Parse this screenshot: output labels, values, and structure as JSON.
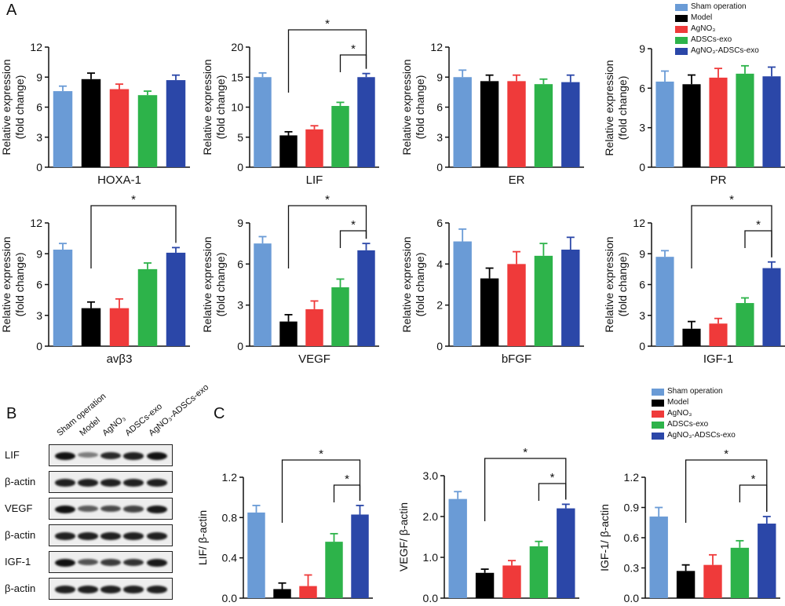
{
  "panel_letters": [
    "A",
    "B",
    "C"
  ],
  "colors": {
    "Sham operation": "#6a9bd6",
    "Model": "#000000",
    "AgNO3": "#ef3a3a",
    "ADSCs-exo": "#2db34a",
    "AgNO3-ADSCs-exo": "#2b47a8"
  },
  "legend": {
    "items": [
      "Sham operation",
      "Model",
      "AgNO₃",
      "ADSCs-exo",
      "AgNO₃-ADSCs-exo"
    ]
  },
  "blot": {
    "lanes": [
      "Sham operation",
      "Model",
      "AgNO₃",
      "ADSCs-exo",
      "AgNO₃-ADSCs-exo"
    ],
    "rows": [
      {
        "label": "LIF",
        "intensity": [
          1.0,
          0.35,
          0.85,
          0.9,
          1.0
        ]
      },
      {
        "label": "β-actin",
        "intensity": [
          0.9,
          0.9,
          0.9,
          0.9,
          0.9
        ]
      },
      {
        "label": "VEGF",
        "intensity": [
          1.0,
          0.55,
          0.65,
          0.7,
          0.95
        ]
      },
      {
        "label": "β-actin",
        "intensity": [
          0.9,
          0.9,
          0.9,
          0.9,
          0.9
        ]
      },
      {
        "label": "IGF-1",
        "intensity": [
          1.0,
          0.6,
          0.75,
          0.8,
          0.95
        ]
      },
      {
        "label": "β-actin",
        "intensity": [
          0.9,
          0.9,
          0.9,
          0.9,
          0.9
        ]
      }
    ]
  },
  "chart_data": [
    {
      "type": "bar",
      "panel": "A",
      "title": "",
      "xlabel": "HOXA-1",
      "ylabel": "Relative expression\n(fold change)",
      "ylim": [
        0,
        12
      ],
      "yticks": [
        "0",
        "3",
        "6",
        "9",
        "12"
      ],
      "categories": [
        "Sham operation",
        "Model",
        "AgNO3",
        "ADSCs-exo",
        "AgNO3-ADSCs-exo"
      ],
      "values": [
        7.6,
        8.8,
        7.8,
        7.2,
        8.7
      ],
      "errors": [
        0.5,
        0.6,
        0.5,
        0.4,
        0.5
      ],
      "sig": []
    },
    {
      "type": "bar",
      "panel": "A",
      "title": "",
      "xlabel": "LIF",
      "ylabel": "Relative expression\n(fold change)",
      "ylim": [
        0,
        20
      ],
      "yticks": [
        "0",
        "5",
        "10",
        "15",
        "20"
      ],
      "categories": [
        "Sham operation",
        "Model",
        "AgNO3",
        "ADSCs-exo",
        "AgNO3-ADSCs-exo"
      ],
      "values": [
        15.0,
        5.3,
        6.3,
        10.2,
        15.0
      ],
      "errors": [
        0.7,
        0.6,
        0.6,
        0.6,
        0.6
      ],
      "sig": [
        [
          1,
          4,
          "*"
        ],
        [
          3,
          4,
          "*"
        ]
      ]
    },
    {
      "type": "bar",
      "panel": "A",
      "title": "",
      "xlabel": "ER",
      "ylabel": "Relative expression\n(fold change)",
      "ylim": [
        0,
        12
      ],
      "yticks": [
        "0",
        "3",
        "6",
        "9",
        "12"
      ],
      "categories": [
        "Sham operation",
        "Model",
        "AgNO3",
        "ADSCs-exo",
        "AgNO3-ADSCs-exo"
      ],
      "values": [
        9.0,
        8.6,
        8.6,
        8.3,
        8.5
      ],
      "errors": [
        0.7,
        0.6,
        0.6,
        0.5,
        0.7
      ],
      "sig": []
    },
    {
      "type": "bar",
      "panel": "A",
      "title": "",
      "xlabel": "PR",
      "ylabel": "Relative expression\n(fold change)",
      "ylim": [
        0,
        9
      ],
      "yticks": [
        "0",
        "3",
        "6",
        "9"
      ],
      "categories": [
        "Sham operation",
        "Model",
        "AgNO3",
        "ADSCs-exo",
        "AgNO3-ADSCs-exo"
      ],
      "values": [
        6.5,
        6.3,
        6.8,
        7.1,
        6.9
      ],
      "errors": [
        0.8,
        0.7,
        0.7,
        0.6,
        0.7
      ],
      "sig": []
    },
    {
      "type": "bar",
      "panel": "A",
      "title": "",
      "xlabel": "avβ3",
      "ylabel": "Relative expression\n(fold change)",
      "ylim": [
        0,
        12
      ],
      "yticks": [
        "0",
        "3",
        "6",
        "9",
        "12"
      ],
      "categories": [
        "Sham operation",
        "Model",
        "AgNO3",
        "ADSCs-exo",
        "AgNO3-ADSCs-exo"
      ],
      "values": [
        9.4,
        3.7,
        3.7,
        7.5,
        9.1
      ],
      "errors": [
        0.6,
        0.6,
        0.9,
        0.6,
        0.5
      ],
      "sig": [
        [
          1,
          4,
          "*"
        ]
      ]
    },
    {
      "type": "bar",
      "panel": "A",
      "title": "",
      "xlabel": "VEGF",
      "ylabel": "Relative expression\n(fold change)",
      "ylim": [
        0,
        9
      ],
      "yticks": [
        "0",
        "3",
        "6",
        "9"
      ],
      "categories": [
        "Sham operation",
        "Model",
        "AgNO3",
        "ADSCs-exo",
        "AgNO3-ADSCs-exo"
      ],
      "values": [
        7.5,
        1.8,
        2.7,
        4.3,
        7.0
      ],
      "errors": [
        0.5,
        0.5,
        0.6,
        0.6,
        0.5
      ],
      "sig": [
        [
          1,
          4,
          "*"
        ],
        [
          3,
          4,
          "*"
        ]
      ]
    },
    {
      "type": "bar",
      "panel": "A",
      "title": "",
      "xlabel": "bFGF",
      "ylabel": "Relative expression\n(fold change)",
      "ylim": [
        0,
        6
      ],
      "yticks": [
        "0",
        "2",
        "4",
        "6"
      ],
      "categories": [
        "Sham operation",
        "Model",
        "AgNO3",
        "ADSCs-exo",
        "AgNO3-ADSCs-exo"
      ],
      "values": [
        5.1,
        3.3,
        4.0,
        4.4,
        4.7
      ],
      "errors": [
        0.6,
        0.5,
        0.6,
        0.6,
        0.6
      ],
      "sig": []
    },
    {
      "type": "bar",
      "panel": "A",
      "title": "",
      "xlabel": "IGF-1",
      "ylabel": "Relative expression\n(fold change)",
      "ylim": [
        0,
        12
      ],
      "yticks": [
        "0",
        "3",
        "6",
        "9",
        "12"
      ],
      "categories": [
        "Sham operation",
        "Model",
        "AgNO3",
        "ADSCs-exo",
        "AgNO3-ADSCs-exo"
      ],
      "values": [
        8.7,
        1.7,
        2.2,
        4.2,
        7.6
      ],
      "errors": [
        0.6,
        0.7,
        0.5,
        0.5,
        0.6
      ],
      "sig": [
        [
          1,
          4,
          "*"
        ],
        [
          3,
          4,
          "*"
        ]
      ]
    },
    {
      "type": "bar",
      "panel": "C",
      "title": "",
      "xlabel": "",
      "ylabel": "LIF/ β-actin",
      "ylim": [
        0,
        1.2
      ],
      "yticks": [
        "0.0",
        "0.4",
        "0.8",
        "1.2"
      ],
      "categories": [
        "Sham operation",
        "Model",
        "AgNO3",
        "ADSCs-exo",
        "AgNO3-ADSCs-exo"
      ],
      "values": [
        0.85,
        0.09,
        0.12,
        0.56,
        0.83
      ],
      "errors": [
        0.07,
        0.06,
        0.11,
        0.08,
        0.09
      ],
      "sig": [
        [
          1,
          4,
          "*"
        ],
        [
          3,
          4,
          "*"
        ]
      ]
    },
    {
      "type": "bar",
      "panel": "C",
      "title": "",
      "xlabel": "",
      "ylabel": "VEGF/ β-actin",
      "ylim": [
        0,
        3.0
      ],
      "yticks": [
        "0.0",
        "1.0",
        "2.0",
        "3.0"
      ],
      "categories": [
        "Sham operation",
        "Model",
        "AgNO3",
        "ADSCs-exo",
        "AgNO3-ADSCs-exo"
      ],
      "values": [
        2.43,
        0.62,
        0.8,
        1.27,
        2.2
      ],
      "errors": [
        0.18,
        0.09,
        0.12,
        0.12,
        0.1
      ],
      "sig": [
        [
          1,
          4,
          "*"
        ],
        [
          3,
          4,
          "*"
        ]
      ]
    },
    {
      "type": "bar",
      "panel": "C",
      "title": "",
      "xlabel": "",
      "ylabel": "IGF-1/ β-actin",
      "ylim": [
        0,
        1.2
      ],
      "yticks": [
        "0.0",
        "0.3",
        "0.6",
        "0.9",
        "1.2"
      ],
      "categories": [
        "Sham operation",
        "Model",
        "AgNO3",
        "ADSCs-exo",
        "AgNO3-ADSCs-exo"
      ],
      "values": [
        0.81,
        0.27,
        0.33,
        0.5,
        0.74
      ],
      "errors": [
        0.09,
        0.06,
        0.1,
        0.07,
        0.07
      ],
      "sig": [
        [
          1,
          4,
          "*"
        ],
        [
          3,
          4,
          "*"
        ]
      ]
    }
  ]
}
